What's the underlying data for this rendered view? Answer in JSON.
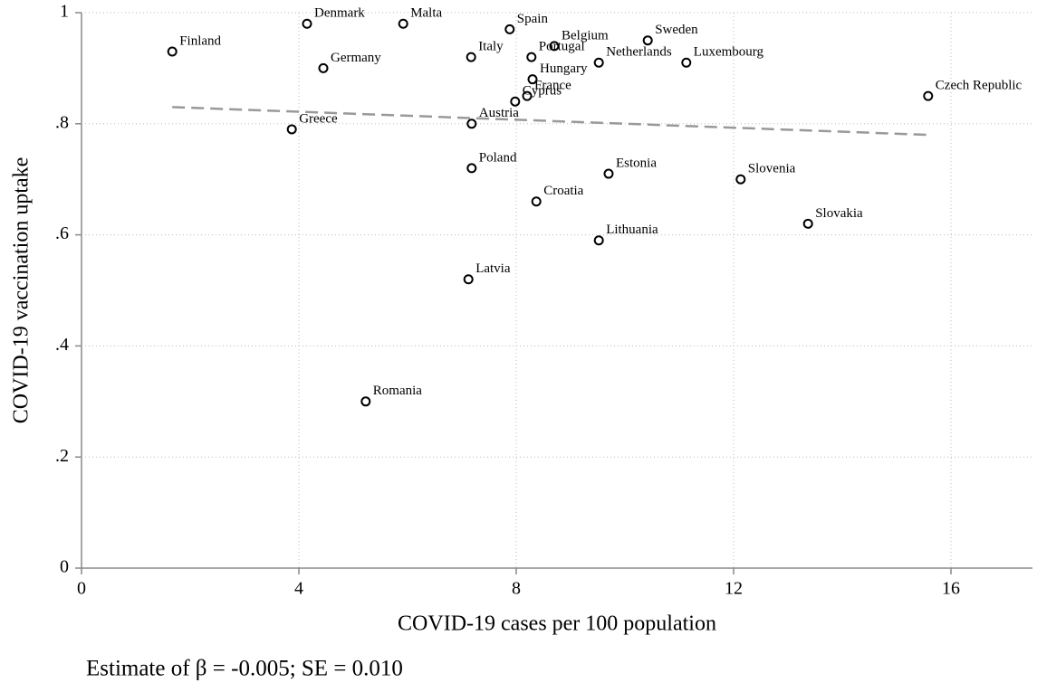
{
  "chart_data": {
    "type": "scatter",
    "x_label": "COVID-19 cases per 100 population",
    "y_label": "COVID-19 vaccination uptake",
    "note": "Estimate of β = -0.005; SE =  0.010",
    "xlim": [
      0,
      17.5
    ],
    "ylim": [
      0,
      1
    ],
    "xticks": [
      0,
      4,
      8,
      12,
      16
    ],
    "yticks": [
      0,
      {
        "value": 0.2,
        "label": ".2"
      },
      {
        "value": 0.4,
        "label": ".4"
      },
      {
        "value": 0.6,
        "label": ".6"
      },
      {
        "value": 0.8,
        "label": ".8"
      },
      1
    ],
    "grid": true,
    "series": [
      {
        "color": "#000000",
        "labels": [
          "Finland",
          "Denmark",
          "Malta",
          "Spain",
          "Belgium",
          "Sweden",
          "Portugal",
          "Italy",
          "Germany",
          "Netherlands",
          "Luxembourg",
          "Hungary",
          "France",
          "Cyprus",
          "Czech Republic",
          "Austria",
          "Greece",
          "Poland",
          "Estonia",
          "Slovenia",
          "Croatia",
          "Slovakia",
          "Lithuania",
          "Latvia",
          "Romania"
        ],
        "x": [
          1.67,
          4.15,
          5.92,
          7.88,
          8.7,
          10.42,
          8.28,
          7.17,
          4.45,
          9.52,
          11.13,
          8.3,
          8.2,
          7.98,
          15.58,
          7.18,
          3.87,
          7.18,
          9.7,
          12.13,
          8.37,
          13.37,
          9.52,
          7.12,
          5.23
        ],
        "values": [
          0.93,
          0.98,
          0.98,
          0.97,
          0.94,
          0.95,
          0.92,
          0.92,
          0.9,
          0.91,
          0.91,
          0.88,
          0.85,
          0.84,
          0.85,
          0.8,
          0.79,
          0.72,
          0.71,
          0.7,
          0.66,
          0.62,
          0.59,
          0.52,
          0.3
        ]
      }
    ],
    "fit_line": {
      "color": "#999999",
      "x": [
        1.67,
        15.58
      ],
      "values": [
        0.83,
        0.78
      ]
    }
  }
}
